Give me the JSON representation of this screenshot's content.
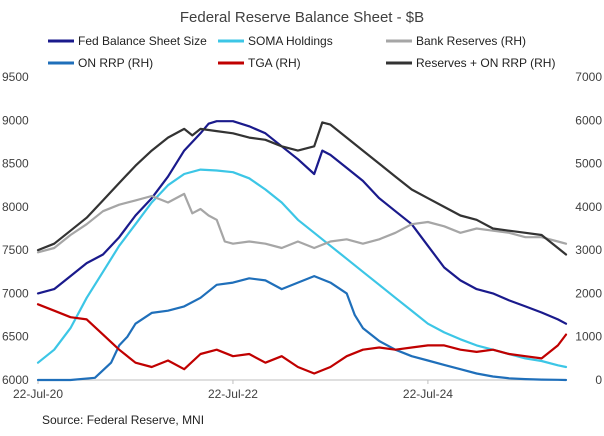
{
  "chart_data": {
    "type": "line",
    "title": "Federal Reserve Balance Sheet - $B",
    "source": "Source: Federal Reserve, MNI",
    "x_ticks": [
      "22-Jul-20",
      "22-Jul-22",
      "22-Jul-24"
    ],
    "x_tick_positions": [
      0,
      24,
      48
    ],
    "x_range": [
      0,
      65
    ],
    "y_left": {
      "range": [
        6000,
        9500
      ],
      "ticks": [
        "6000",
        "6500",
        "7000",
        "7500",
        "8000",
        "8500",
        "9000",
        "9500"
      ]
    },
    "y_right": {
      "range": [
        0,
        7000
      ],
      "ticks": [
        "0",
        "1000",
        "2000",
        "3000",
        "4000",
        "5000",
        "6000",
        "7000"
      ]
    },
    "x_unit": "months since 22-Jul-20",
    "series": [
      {
        "name": "Fed Balance Sheet Size",
        "axis": "left",
        "color": "#1a1a8c",
        "points": [
          [
            0,
            7000
          ],
          [
            2,
            7050
          ],
          [
            4,
            7200
          ],
          [
            6,
            7350
          ],
          [
            8,
            7450
          ],
          [
            10,
            7650
          ],
          [
            12,
            7900
          ],
          [
            14,
            8100
          ],
          [
            16,
            8350
          ],
          [
            18,
            8650
          ],
          [
            20,
            8850
          ],
          [
            21,
            8960
          ],
          [
            22,
            8990
          ],
          [
            24,
            8990
          ],
          [
            26,
            8930
          ],
          [
            28,
            8850
          ],
          [
            30,
            8700
          ],
          [
            32,
            8550
          ],
          [
            34,
            8380
          ],
          [
            35,
            8650
          ],
          [
            36,
            8600
          ],
          [
            38,
            8450
          ],
          [
            40,
            8300
          ],
          [
            42,
            8100
          ],
          [
            44,
            7950
          ],
          [
            46,
            7800
          ],
          [
            48,
            7550
          ],
          [
            50,
            7300
          ],
          [
            52,
            7150
          ],
          [
            54,
            7050
          ],
          [
            56,
            7000
          ],
          [
            58,
            6920
          ],
          [
            60,
            6850
          ],
          [
            62,
            6780
          ],
          [
            64,
            6700
          ],
          [
            65,
            6650
          ]
        ]
      },
      {
        "name": "SOMA Holdings",
        "axis": "left",
        "color": "#3cc6e6",
        "points": [
          [
            0,
            6200
          ],
          [
            2,
            6350
          ],
          [
            4,
            6600
          ],
          [
            6,
            6950
          ],
          [
            8,
            7250
          ],
          [
            10,
            7550
          ],
          [
            12,
            7800
          ],
          [
            14,
            8050
          ],
          [
            16,
            8250
          ],
          [
            18,
            8380
          ],
          [
            20,
            8430
          ],
          [
            22,
            8420
          ],
          [
            24,
            8400
          ],
          [
            26,
            8330
          ],
          [
            28,
            8200
          ],
          [
            30,
            8050
          ],
          [
            32,
            7850
          ],
          [
            34,
            7700
          ],
          [
            36,
            7550
          ],
          [
            38,
            7400
          ],
          [
            40,
            7250
          ],
          [
            42,
            7100
          ],
          [
            44,
            6950
          ],
          [
            46,
            6800
          ],
          [
            48,
            6650
          ],
          [
            50,
            6550
          ],
          [
            52,
            6470
          ],
          [
            54,
            6400
          ],
          [
            56,
            6350
          ],
          [
            58,
            6300
          ],
          [
            60,
            6250
          ],
          [
            62,
            6220
          ],
          [
            64,
            6170
          ],
          [
            65,
            6150
          ]
        ]
      },
      {
        "name": "Bank Reserves (RH)",
        "axis": "right",
        "color": "#a6a6a6",
        "points": [
          [
            0,
            2950
          ],
          [
            2,
            3050
          ],
          [
            4,
            3350
          ],
          [
            6,
            3600
          ],
          [
            8,
            3900
          ],
          [
            10,
            4050
          ],
          [
            12,
            4150
          ],
          [
            14,
            4250
          ],
          [
            16,
            4100
          ],
          [
            18,
            4300
          ],
          [
            19,
            3850
          ],
          [
            20,
            3950
          ],
          [
            21,
            3800
          ],
          [
            22,
            3700
          ],
          [
            23,
            3200
          ],
          [
            24,
            3150
          ],
          [
            26,
            3200
          ],
          [
            28,
            3150
          ],
          [
            30,
            3050
          ],
          [
            32,
            3200
          ],
          [
            34,
            3050
          ],
          [
            36,
            3200
          ],
          [
            38,
            3250
          ],
          [
            40,
            3150
          ],
          [
            42,
            3250
          ],
          [
            44,
            3400
          ],
          [
            46,
            3600
          ],
          [
            48,
            3650
          ],
          [
            50,
            3550
          ],
          [
            52,
            3400
          ],
          [
            54,
            3500
          ],
          [
            56,
            3450
          ],
          [
            58,
            3400
          ],
          [
            60,
            3300
          ],
          [
            62,
            3300
          ],
          [
            64,
            3200
          ],
          [
            65,
            3150
          ]
        ]
      },
      {
        "name": "Reserves + ON RRP (RH)",
        "axis": "right",
        "color": "#333333",
        "points": [
          [
            0,
            3000
          ],
          [
            2,
            3150
          ],
          [
            4,
            3450
          ],
          [
            6,
            3750
          ],
          [
            8,
            4150
          ],
          [
            10,
            4550
          ],
          [
            12,
            4950
          ],
          [
            14,
            5300
          ],
          [
            16,
            5600
          ],
          [
            18,
            5800
          ],
          [
            19,
            5650
          ],
          [
            20,
            5800
          ],
          [
            22,
            5750
          ],
          [
            24,
            5700
          ],
          [
            26,
            5600
          ],
          [
            28,
            5550
          ],
          [
            30,
            5400
          ],
          [
            32,
            5300
          ],
          [
            34,
            5400
          ],
          [
            35,
            5950
          ],
          [
            36,
            5900
          ],
          [
            38,
            5600
          ],
          [
            40,
            5300
          ],
          [
            42,
            5000
          ],
          [
            44,
            4700
          ],
          [
            46,
            4400
          ],
          [
            48,
            4200
          ],
          [
            50,
            4000
          ],
          [
            52,
            3800
          ],
          [
            54,
            3700
          ],
          [
            56,
            3500
          ],
          [
            58,
            3450
          ],
          [
            60,
            3400
          ],
          [
            62,
            3350
          ],
          [
            64,
            3050
          ],
          [
            65,
            2900
          ]
        ]
      },
      {
        "name": "ON RRP (RH)",
        "axis": "right",
        "color": "#1f6fba",
        "points": [
          [
            0,
            0
          ],
          [
            4,
            0
          ],
          [
            7,
            50
          ],
          [
            9,
            400
          ],
          [
            10,
            800
          ],
          [
            11,
            1000
          ],
          [
            12,
            1300
          ],
          [
            14,
            1550
          ],
          [
            16,
            1600
          ],
          [
            18,
            1700
          ],
          [
            20,
            1900
          ],
          [
            22,
            2200
          ],
          [
            24,
            2250
          ],
          [
            26,
            2350
          ],
          [
            28,
            2300
          ],
          [
            30,
            2100
          ],
          [
            32,
            2250
          ],
          [
            34,
            2400
          ],
          [
            36,
            2250
          ],
          [
            38,
            2000
          ],
          [
            39,
            1500
          ],
          [
            40,
            1200
          ],
          [
            42,
            900
          ],
          [
            44,
            700
          ],
          [
            46,
            550
          ],
          [
            48,
            450
          ],
          [
            50,
            350
          ],
          [
            52,
            250
          ],
          [
            54,
            150
          ],
          [
            56,
            80
          ],
          [
            58,
            40
          ],
          [
            60,
            20
          ],
          [
            62,
            10
          ],
          [
            64,
            5
          ],
          [
            65,
            0
          ]
        ]
      },
      {
        "name": "TGA (RH)",
        "axis": "right",
        "color": "#c00000",
        "points": [
          [
            0,
            1750
          ],
          [
            2,
            1600
          ],
          [
            4,
            1450
          ],
          [
            6,
            1400
          ],
          [
            8,
            1050
          ],
          [
            10,
            700
          ],
          [
            12,
            400
          ],
          [
            14,
            300
          ],
          [
            16,
            450
          ],
          [
            18,
            250
          ],
          [
            20,
            600
          ],
          [
            22,
            700
          ],
          [
            24,
            550
          ],
          [
            26,
            600
          ],
          [
            28,
            400
          ],
          [
            30,
            550
          ],
          [
            32,
            300
          ],
          [
            34,
            150
          ],
          [
            36,
            300
          ],
          [
            38,
            550
          ],
          [
            40,
            700
          ],
          [
            42,
            750
          ],
          [
            44,
            700
          ],
          [
            46,
            750
          ],
          [
            48,
            800
          ],
          [
            50,
            800
          ],
          [
            52,
            700
          ],
          [
            54,
            650
          ],
          [
            56,
            700
          ],
          [
            58,
            600
          ],
          [
            60,
            550
          ],
          [
            62,
            500
          ],
          [
            64,
            800
          ],
          [
            65,
            1050
          ]
        ]
      }
    ],
    "legend_placement": "top"
  }
}
